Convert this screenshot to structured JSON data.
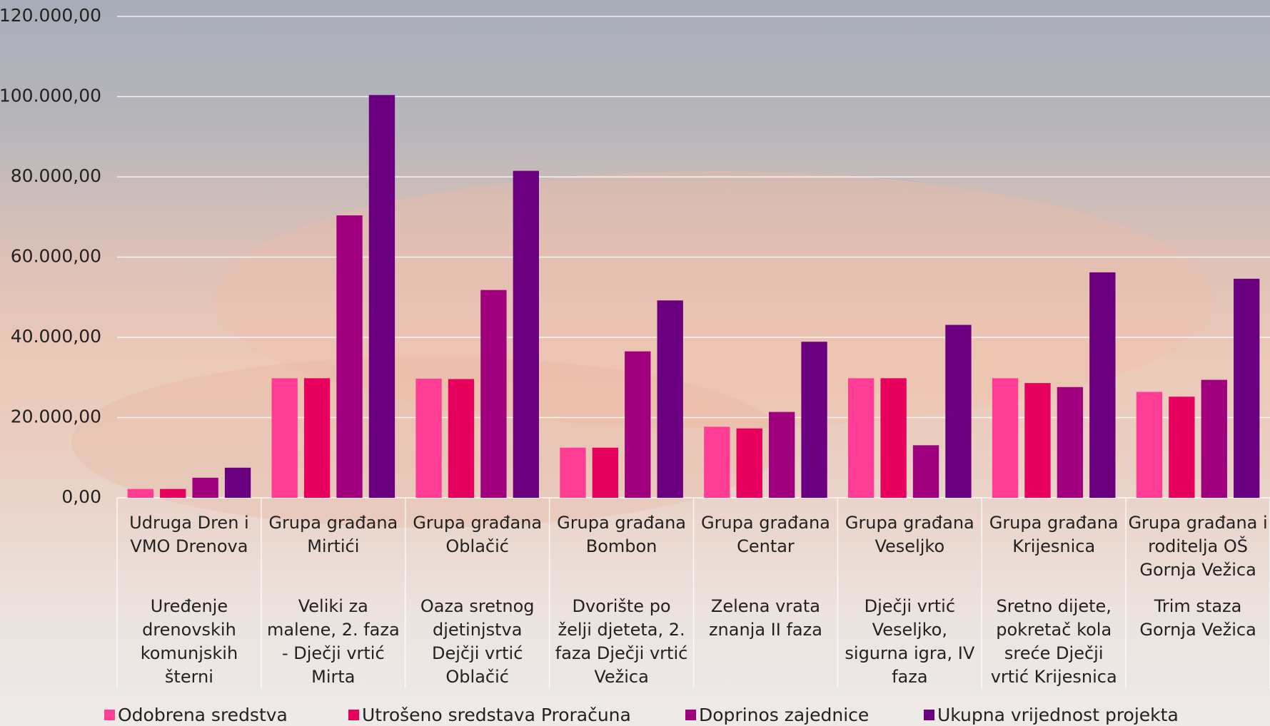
{
  "chart_data": {
    "type": "bar",
    "categories": [
      "Udruga Dren i VMO Drenova",
      "Grupa građana Mirtići",
      "Grupa građana Oblačić",
      "Grupa građana Bombon",
      "Grupa građana Centar",
      "Grupa građana Veseljko",
      "Grupa građana Krijesnica",
      "Grupa građana i roditelja OŠ Gornja Vežica"
    ],
    "projects": [
      "Uređenje drenovskih komunjskih šterni",
      "Veliki za malene, 2. faza - Dječji vrtić Mirta",
      "Oaza sretnog djetinjstva Dejčji vrtić Oblačić",
      "Dvorište po želji djeteta, 2. faza Dječji vrtić Vežica",
      "Zelena vrata znanja II faza",
      "Dječji vrtić Veseljko, sigurna igra, IV faza",
      "Sretno dijete, pokretač kola sreće Dječji vrtić Krijesnica",
      "Trim staza Gornja Vežica"
    ],
    "series": [
      {
        "name": "Odobrena sredstva",
        "color": "#ff3d94",
        "values": [
          2200,
          29800,
          29700,
          12500,
          17700,
          29800,
          29800,
          26400
        ]
      },
      {
        "name": "Utrošeno sredstava Proračuna",
        "color": "#e8005f",
        "values": [
          2200,
          29800,
          29600,
          12500,
          17300,
          29800,
          28600,
          25200
        ]
      },
      {
        "name": "Doprinos zajednice",
        "color": "#a0007e",
        "values": [
          5000,
          70400,
          51800,
          36500,
          21400,
          13100,
          27600,
          29400
        ]
      },
      {
        "name": "Ukupna vrijednost projekta",
        "color": "#6a007f",
        "values": [
          7500,
          100400,
          81500,
          49200,
          38900,
          43100,
          56200,
          54600
        ]
      }
    ],
    "ylim": [
      0,
      120000
    ],
    "yticks": [
      {
        "value": 0,
        "label": "0,00"
      },
      {
        "value": 20000,
        "label": "20.000,00"
      },
      {
        "value": 40000,
        "label": "40.000,00"
      },
      {
        "value": 60000,
        "label": "60.000,00"
      },
      {
        "value": 80000,
        "label": "80.000,00"
      },
      {
        "value": 100000,
        "label": "100.000,00"
      },
      {
        "value": 120000,
        "label": "120.000,00"
      }
    ],
    "grid": true,
    "legend": "bottom"
  }
}
